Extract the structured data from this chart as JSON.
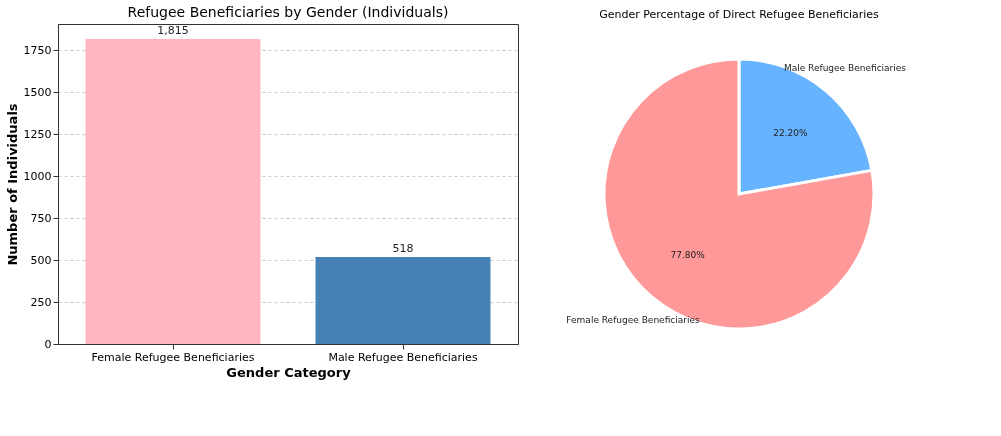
{
  "chart_data": [
    {
      "type": "bar",
      "title": "Refugee Beneficiaries by Gender (Individuals)",
      "xlabel": "Gender Category",
      "ylabel": "Number of Individuals",
      "categories": [
        "Female Refugee Beneficiaries",
        "Male Refugee Beneficiaries"
      ],
      "values": [
        1815,
        518
      ],
      "colors": [
        "#ffb6c1",
        "#4682b4"
      ],
      "value_labels": [
        "1,815",
        "518"
      ],
      "ylim": [
        0,
        1905
      ],
      "yticks": [
        0,
        250,
        500,
        750,
        1000,
        1250,
        1500,
        1750
      ],
      "grid": "y",
      "legend": false
    },
    {
      "type": "pie",
      "title": "Gender Percentage of Direct Refugee Beneficiaries",
      "categories": [
        "Male Refugee Beneficiaries",
        "Female Refugee Beneficiaries"
      ],
      "values": [
        22.2,
        77.8
      ],
      "colors": [
        "#66b3ff",
        "#ff9999"
      ],
      "value_labels": [
        "22.20%",
        "77.80%"
      ],
      "legend": false
    }
  ]
}
